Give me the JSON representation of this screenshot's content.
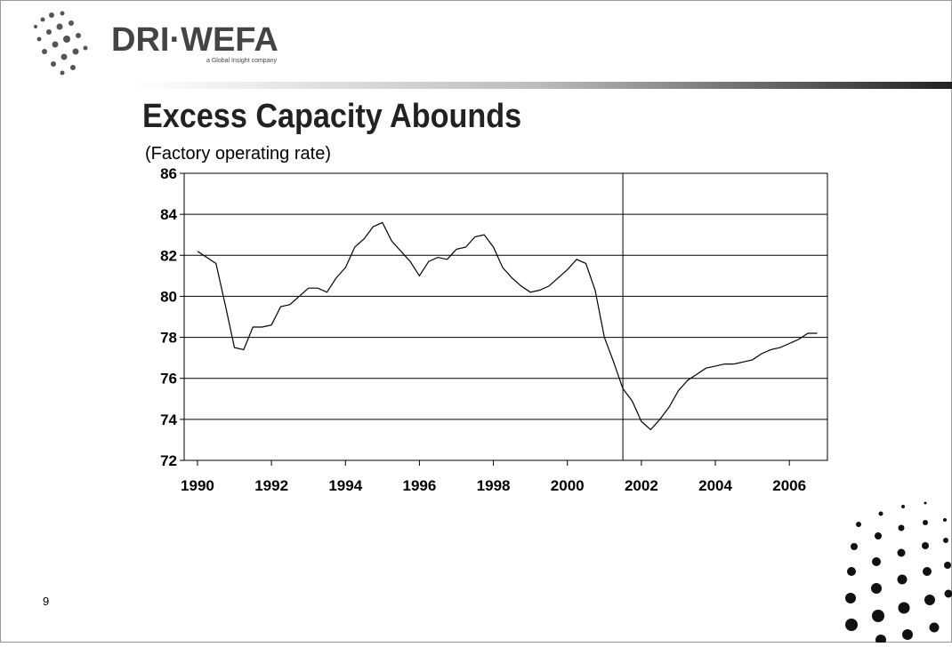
{
  "header": {
    "logo": "DRI·WEFA",
    "tagline": "a Global Insight company"
  },
  "page_number": "9",
  "chart_data": {
    "type": "line",
    "title": "Excess Capacity Abounds",
    "subtitle": "(Factory operating rate)",
    "x": [
      1990,
      1990.25,
      1990.5,
      1990.75,
      1991,
      1991.25,
      1991.5,
      1991.75,
      1992,
      1992.25,
      1992.5,
      1992.75,
      1993,
      1993.25,
      1993.5,
      1993.75,
      1994,
      1994.25,
      1994.5,
      1994.75,
      1995,
      1995.25,
      1995.5,
      1995.75,
      1996,
      1996.25,
      1996.5,
      1996.75,
      1997,
      1997.25,
      1997.5,
      1997.75,
      1998,
      1998.25,
      1998.5,
      1998.75,
      1999,
      1999.25,
      1999.5,
      1999.75,
      2000,
      2000.25,
      2000.5,
      2000.75,
      2001,
      2001.25,
      2001.5,
      2001.75,
      2002,
      2002.25,
      2002.5,
      2002.75,
      2003,
      2003.25,
      2003.5,
      2003.75,
      2004,
      2004.25,
      2004.5,
      2004.75,
      2005,
      2005.25,
      2005.5,
      2005.75,
      2006,
      2006.25,
      2006.5,
      2006.75
    ],
    "series": [
      {
        "color": "#000000",
        "values": [
          82.2,
          81.9,
          81.6,
          79.6,
          77.5,
          77.4,
          78.5,
          78.5,
          78.6,
          79.5,
          79.6,
          80.0,
          80.4,
          80.4,
          80.2,
          80.9,
          81.4,
          82.4,
          82.8,
          83.4,
          83.6,
          82.7,
          82.2,
          81.7,
          81.0,
          81.7,
          81.9,
          81.8,
          82.3,
          82.4,
          82.9,
          83.0,
          82.4,
          81.4,
          80.9,
          80.5,
          80.2,
          80.3,
          80.5,
          80.9,
          81.3,
          81.8,
          81.6,
          80.3,
          78.0,
          76.8,
          75.5,
          74.9,
          73.9,
          73.5,
          74.0,
          74.6,
          75.4,
          75.9,
          76.2,
          76.5,
          76.6,
          76.7,
          76.7,
          76.8,
          76.9,
          77.2,
          77.4,
          77.5,
          77.7,
          77.9,
          78.2,
          78.2
        ]
      }
    ],
    "xlim": [
      1989.64,
      2007.03
    ],
    "xticks": [
      1990,
      1992,
      1994,
      1996,
      1998,
      2000,
      2002,
      2004,
      2006
    ],
    "ylim": [
      72,
      86
    ],
    "yticks": [
      72,
      74,
      76,
      78,
      80,
      82,
      84,
      86
    ],
    "grid": true,
    "reference_line_x": 2001.5
  }
}
